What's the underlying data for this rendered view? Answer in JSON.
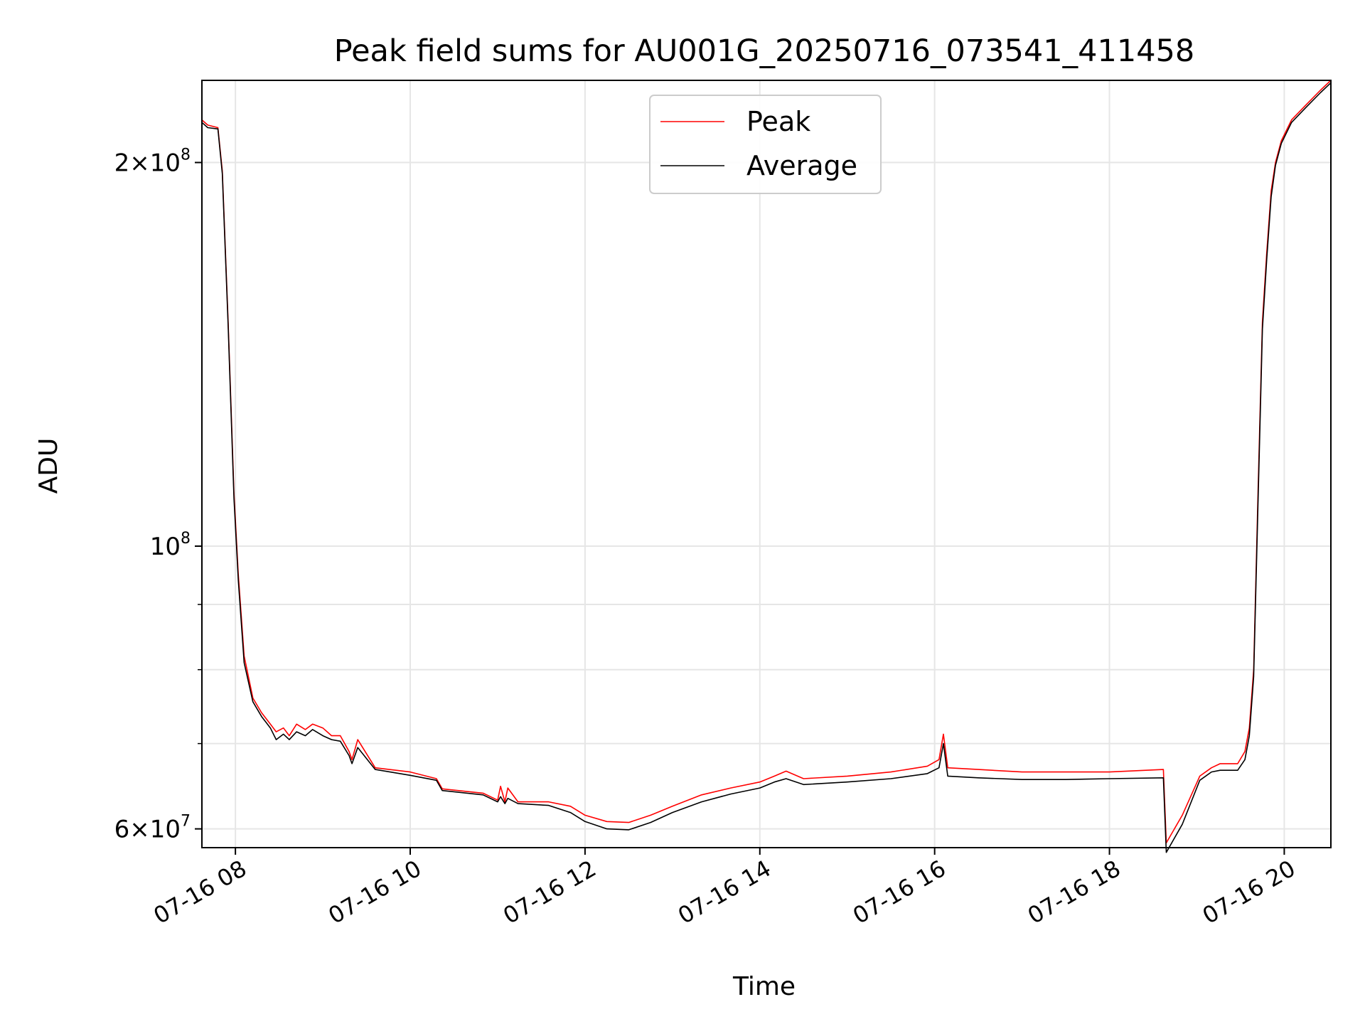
{
  "chart_data": {
    "type": "line",
    "title": "Peak field sums for AU001G_20250716_073541_411458",
    "xlabel": "Time",
    "ylabel": "ADU",
    "x_axis_kind": "time",
    "xlim": [
      "2025-07-16 07:37",
      "2025-07-16 20:32"
    ],
    "ylim": [
      58000000,
      232000000
    ],
    "y_scale": "log",
    "grid": true,
    "legend_position": "upper center",
    "x_ticks": [
      {
        "value": "2025-07-16 08:00",
        "label": "07-16 08"
      },
      {
        "value": "2025-07-16 10:00",
        "label": "07-16 10"
      },
      {
        "value": "2025-07-16 12:00",
        "label": "07-16 12"
      },
      {
        "value": "2025-07-16 14:00",
        "label": "07-16 14"
      },
      {
        "value": "2025-07-16 16:00",
        "label": "07-16 16"
      },
      {
        "value": "2025-07-16 18:00",
        "label": "07-16 18"
      },
      {
        "value": "2025-07-16 20:00",
        "label": "07-16 20"
      }
    ],
    "y_major_ticks": [
      {
        "value": 60000000,
        "mantissa": "6",
        "exponent": "7"
      },
      {
        "value": 100000000,
        "mantissa": "",
        "exponent": "8"
      },
      {
        "value": 200000000,
        "mantissa": "2",
        "exponent": "8"
      }
    ],
    "y_minor_grid": [
      70000000,
      80000000,
      90000000
    ],
    "series": [
      {
        "name": "Peak",
        "color": "#ff0000",
        "points": [
          [
            "2025-07-16 07:37",
            216000000
          ],
          [
            "2025-07-16 07:41",
            214000000
          ],
          [
            "2025-07-16 07:48",
            213000000
          ],
          [
            "2025-07-16 07:51",
            197000000
          ],
          [
            "2025-07-16 07:55",
            150000000
          ],
          [
            "2025-07-16 07:59",
            110000000
          ],
          [
            "2025-07-16 08:02",
            95000000
          ],
          [
            "2025-07-16 08:06",
            82000000
          ],
          [
            "2025-07-16 08:12",
            76000000
          ],
          [
            "2025-07-16 08:18",
            74000000
          ],
          [
            "2025-07-16 08:24",
            72500000
          ],
          [
            "2025-07-16 08:28",
            71500000
          ],
          [
            "2025-07-16 08:33",
            72000000
          ],
          [
            "2025-07-16 08:37",
            71000000
          ],
          [
            "2025-07-16 08:42",
            72500000
          ],
          [
            "2025-07-16 08:48",
            71800000
          ],
          [
            "2025-07-16 08:53",
            72500000
          ],
          [
            "2025-07-16 09:00",
            72000000
          ],
          [
            "2025-07-16 09:06",
            71000000
          ],
          [
            "2025-07-16 09:12",
            71000000
          ],
          [
            "2025-07-16 09:18",
            69000000
          ],
          [
            "2025-07-16 09:20",
            68000000
          ],
          [
            "2025-07-16 09:24",
            70500000
          ],
          [
            "2025-07-16 09:36",
            67000000
          ],
          [
            "2025-07-16 10:00",
            66500000
          ],
          [
            "2025-07-16 10:18",
            65700000
          ],
          [
            "2025-07-16 10:22",
            64500000
          ],
          [
            "2025-07-16 10:50",
            64000000
          ],
          [
            "2025-07-16 11:00",
            63200000
          ],
          [
            "2025-07-16 11:02",
            64800000
          ],
          [
            "2025-07-16 11:05",
            63000000
          ],
          [
            "2025-07-16 11:07",
            64600000
          ],
          [
            "2025-07-16 11:14",
            63000000
          ],
          [
            "2025-07-16 11:35",
            63000000
          ],
          [
            "2025-07-16 11:50",
            62500000
          ],
          [
            "2025-07-16 12:00",
            61500000
          ],
          [
            "2025-07-16 12:15",
            60800000
          ],
          [
            "2025-07-16 12:30",
            60700000
          ],
          [
            "2025-07-16 12:45",
            61500000
          ],
          [
            "2025-07-16 13:00",
            62500000
          ],
          [
            "2025-07-16 13:20",
            63800000
          ],
          [
            "2025-07-16 13:40",
            64600000
          ],
          [
            "2025-07-16 14:00",
            65300000
          ],
          [
            "2025-07-16 14:10",
            66000000
          ],
          [
            "2025-07-16 14:18",
            66600000
          ],
          [
            "2025-07-16 14:30",
            65700000
          ],
          [
            "2025-07-16 15:00",
            66000000
          ],
          [
            "2025-07-16 15:30",
            66500000
          ],
          [
            "2025-07-16 15:55",
            67200000
          ],
          [
            "2025-07-16 16:03",
            68000000
          ],
          [
            "2025-07-16 16:06",
            71200000
          ],
          [
            "2025-07-16 16:09",
            67000000
          ],
          [
            "2025-07-16 16:30",
            66800000
          ],
          [
            "2025-07-16 17:00",
            66500000
          ],
          [
            "2025-07-16 17:30",
            66500000
          ],
          [
            "2025-07-16 18:00",
            66500000
          ],
          [
            "2025-07-16 18:37",
            66800000
          ],
          [
            "2025-07-16 18:39",
            58500000
          ],
          [
            "2025-07-16 18:50",
            61500000
          ],
          [
            "2025-07-16 19:02",
            66000000
          ],
          [
            "2025-07-16 19:10",
            67000000
          ],
          [
            "2025-07-16 19:16",
            67500000
          ],
          [
            "2025-07-16 19:22",
            67500000
          ],
          [
            "2025-07-16 19:28",
            67500000
          ],
          [
            "2025-07-16 19:33",
            69000000
          ],
          [
            "2025-07-16 19:36",
            72000000
          ],
          [
            "2025-07-16 19:39",
            80000000
          ],
          [
            "2025-07-16 19:42",
            110000000
          ],
          [
            "2025-07-16 19:45",
            150000000
          ],
          [
            "2025-07-16 19:48",
            170000000
          ],
          [
            "2025-07-16 19:51",
            190000000
          ],
          [
            "2025-07-16 19:54",
            200000000
          ],
          [
            "2025-07-16 19:58",
            208000000
          ],
          [
            "2025-07-16 20:05",
            216000000
          ],
          [
            "2025-07-16 20:15",
            222000000
          ],
          [
            "2025-07-16 20:25",
            228000000
          ],
          [
            "2025-07-16 20:32",
            232000000
          ]
        ]
      },
      {
        "name": "Average",
        "color": "#000000",
        "points": [
          [
            "2025-07-16 07:37",
            215000000
          ],
          [
            "2025-07-16 07:41",
            213000000
          ],
          [
            "2025-07-16 07:48",
            212500000
          ],
          [
            "2025-07-16 07:51",
            196000000
          ],
          [
            "2025-07-16 07:55",
            149000000
          ],
          [
            "2025-07-16 07:59",
            109000000
          ],
          [
            "2025-07-16 08:02",
            94000000
          ],
          [
            "2025-07-16 08:06",
            81000000
          ],
          [
            "2025-07-16 08:12",
            75500000
          ],
          [
            "2025-07-16 08:18",
            73500000
          ],
          [
            "2025-07-16 08:24",
            72000000
          ],
          [
            "2025-07-16 08:28",
            70500000
          ],
          [
            "2025-07-16 08:33",
            71200000
          ],
          [
            "2025-07-16 08:37",
            70500000
          ],
          [
            "2025-07-16 08:42",
            71500000
          ],
          [
            "2025-07-16 08:48",
            71000000
          ],
          [
            "2025-07-16 08:53",
            71800000
          ],
          [
            "2025-07-16 09:00",
            71000000
          ],
          [
            "2025-07-16 09:06",
            70500000
          ],
          [
            "2025-07-16 09:12",
            70300000
          ],
          [
            "2025-07-16 09:18",
            68500000
          ],
          [
            "2025-07-16 09:20",
            67500000
          ],
          [
            "2025-07-16 09:24",
            69500000
          ],
          [
            "2025-07-16 09:36",
            66800000
          ],
          [
            "2025-07-16 10:00",
            66100000
          ],
          [
            "2025-07-16 10:18",
            65500000
          ],
          [
            "2025-07-16 10:22",
            64300000
          ],
          [
            "2025-07-16 10:50",
            63800000
          ],
          [
            "2025-07-16 11:00",
            63000000
          ],
          [
            "2025-07-16 11:02",
            63600000
          ],
          [
            "2025-07-16 11:05",
            62800000
          ],
          [
            "2025-07-16 11:07",
            63400000
          ],
          [
            "2025-07-16 11:14",
            62800000
          ],
          [
            "2025-07-16 11:35",
            62600000
          ],
          [
            "2025-07-16 11:50",
            61800000
          ],
          [
            "2025-07-16 12:00",
            60800000
          ],
          [
            "2025-07-16 12:15",
            60000000
          ],
          [
            "2025-07-16 12:30",
            59900000
          ],
          [
            "2025-07-16 12:45",
            60700000
          ],
          [
            "2025-07-16 13:00",
            61800000
          ],
          [
            "2025-07-16 13:20",
            63000000
          ],
          [
            "2025-07-16 13:40",
            63900000
          ],
          [
            "2025-07-16 14:00",
            64600000
          ],
          [
            "2025-07-16 14:10",
            65300000
          ],
          [
            "2025-07-16 14:18",
            65700000
          ],
          [
            "2025-07-16 14:30",
            65000000
          ],
          [
            "2025-07-16 15:00",
            65300000
          ],
          [
            "2025-07-16 15:30",
            65700000
          ],
          [
            "2025-07-16 15:55",
            66300000
          ],
          [
            "2025-07-16 16:03",
            67000000
          ],
          [
            "2025-07-16 16:06",
            70000000
          ],
          [
            "2025-07-16 16:09",
            66000000
          ],
          [
            "2025-07-16 16:30",
            65800000
          ],
          [
            "2025-07-16 17:00",
            65600000
          ],
          [
            "2025-07-16 17:30",
            65600000
          ],
          [
            "2025-07-16 18:00",
            65700000
          ],
          [
            "2025-07-16 18:37",
            65800000
          ],
          [
            "2025-07-16 18:39",
            57500000
          ],
          [
            "2025-07-16 18:50",
            60500000
          ],
          [
            "2025-07-16 19:02",
            65500000
          ],
          [
            "2025-07-16 19:10",
            66500000
          ],
          [
            "2025-07-16 19:16",
            66700000
          ],
          [
            "2025-07-16 19:22",
            66700000
          ],
          [
            "2025-07-16 19:28",
            66700000
          ],
          [
            "2025-07-16 19:33",
            68000000
          ],
          [
            "2025-07-16 19:36",
            71000000
          ],
          [
            "2025-07-16 19:39",
            79000000
          ],
          [
            "2025-07-16 19:42",
            108000000
          ],
          [
            "2025-07-16 19:45",
            148000000
          ],
          [
            "2025-07-16 19:48",
            168000000
          ],
          [
            "2025-07-16 19:51",
            188000000
          ],
          [
            "2025-07-16 19:54",
            199000000
          ],
          [
            "2025-07-16 19:58",
            207000000
          ],
          [
            "2025-07-16 20:05",
            215000000
          ],
          [
            "2025-07-16 20:15",
            221000000
          ],
          [
            "2025-07-16 20:25",
            227000000
          ],
          [
            "2025-07-16 20:32",
            231000000
          ]
        ]
      }
    ]
  }
}
